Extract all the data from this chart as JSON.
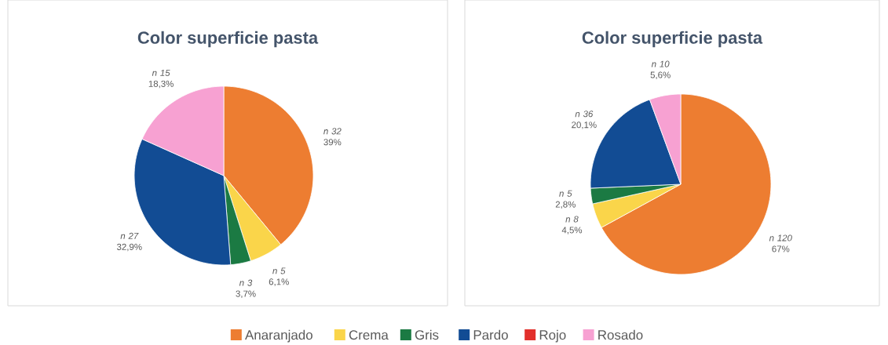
{
  "chart_data": [
    {
      "type": "pie",
      "title": "Color superficie pasta",
      "categories": [
        "Anaranjado",
        "Crema",
        "Gris",
        "Pardo",
        "Rojo",
        "Rosado"
      ],
      "values": [
        32,
        5,
        3,
        27,
        0,
        15
      ],
      "colors": [
        "#ed7d31",
        "#fad54a",
        "#1b7a43",
        "#124c94",
        "#e2302c",
        "#f7a1d2"
      ],
      "value_labels": [
        "*n 32* 39%",
        "*n 5* 6,1%",
        "*n 3* 3,7%",
        "*n 27* 32,9%",
        null,
        "*n 15* 18,3%"
      ],
      "legend": "bottom"
    },
    {
      "type": "pie",
      "title": "Color superficie pasta",
      "categories": [
        null,
        null,
        null,
        null,
        null,
        null
      ],
      "values": [
        120,
        8,
        5,
        36,
        0,
        10
      ],
      "colors": [
        "#ed7d31",
        "#fad54a",
        "#1b7a43",
        "#124c94",
        "#e2302c",
        "#f7a1d2"
      ],
      "value_labels": [
        "*n 120* 67%",
        "*n 8* 4,5%",
        "*n 5* 2,8%",
        "*n 36* 20,1%",
        null,
        "*n 10* 5,6%"
      ]
    }
  ]
}
